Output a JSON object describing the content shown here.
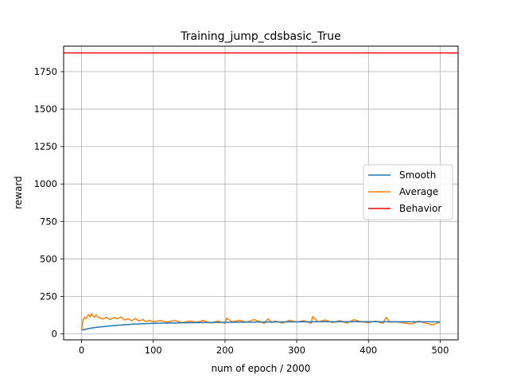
{
  "chart_data": {
    "type": "line",
    "title": "Training_jump_cdsbasic_True",
    "xlabel": "num of epoch / 2000",
    "ylabel": "reward",
    "xlim": [
      -25,
      525
    ],
    "ylim": [
      -40,
      1920
    ],
    "xticks": [
      0,
      100,
      200,
      300,
      400,
      500
    ],
    "yticks": [
      0,
      250,
      500,
      750,
      1000,
      1250,
      1500,
      1750
    ],
    "grid": true,
    "legend_position": "center-right",
    "series": [
      {
        "name": "Smooth",
        "color": "#1f77b4",
        "x": [
          0,
          10,
          20,
          40,
          60,
          80,
          100,
          150,
          200,
          250,
          300,
          350,
          400,
          450,
          500
        ],
        "y": [
          25,
          35,
          43,
          53,
          61,
          66,
          70,
          74,
          77,
          79,
          80,
          81,
          81,
          80,
          80
        ]
      },
      {
        "name": "Average",
        "color": "#ff7f0e",
        "x": [
          0,
          2,
          4,
          6,
          8,
          10,
          12,
          14,
          16,
          18,
          20,
          25,
          30,
          35,
          40,
          45,
          50,
          55,
          60,
          65,
          70,
          75,
          80,
          85,
          90,
          95,
          100,
          110,
          120,
          130,
          140,
          150,
          160,
          170,
          180,
          190,
          200,
          202,
          210,
          220,
          230,
          240,
          250,
          255,
          260,
          265,
          270,
          280,
          290,
          300,
          310,
          320,
          322,
          330,
          340,
          350,
          360,
          370,
          380,
          390,
          400,
          410,
          420,
          425,
          430,
          440,
          450,
          460,
          470,
          480,
          490,
          500
        ],
        "y": [
          25,
          95,
          110,
          100,
          118,
          128,
          112,
          135,
          120,
          110,
          125,
          105,
          100,
          110,
          95,
          108,
          100,
          112,
          92,
          100,
          88,
          102,
          85,
          95,
          82,
          90,
          80,
          88,
          78,
          90,
          75,
          85,
          78,
          88,
          72,
          85,
          70,
          105,
          80,
          90,
          78,
          95,
          80,
          70,
          100,
          75,
          85,
          72,
          90,
          78,
          88,
          70,
          115,
          80,
          92,
          75,
          88,
          72,
          95,
          80,
          75,
          85,
          70,
          110,
          78,
          80,
          72,
          65,
          85,
          70,
          60,
          80
        ]
      },
      {
        "name": "Behavior",
        "color": "#ff0000",
        "x": [
          -25,
          525
        ],
        "y": [
          1875,
          1875
        ]
      }
    ]
  }
}
